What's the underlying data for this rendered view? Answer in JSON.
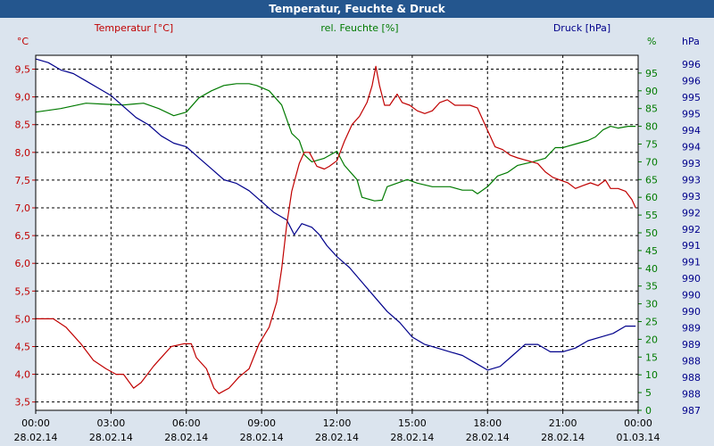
{
  "title": "Temperatur, Feuchte & Druck",
  "chart_data": {
    "type": "line",
    "grid": true,
    "x_ticks": [
      {
        "time": "00:00",
        "date": "28.02.14"
      },
      {
        "time": "03:00",
        "date": "28.02.14"
      },
      {
        "time": "06:00",
        "date": "28.02.14"
      },
      {
        "time": "09:00",
        "date": "28.02.14"
      },
      {
        "time": "12:00",
        "date": "28.02.14"
      },
      {
        "time": "15:00",
        "date": "28.02.14"
      },
      {
        "time": "18:00",
        "date": "28.02.14"
      },
      {
        "time": "21:00",
        "date": "28.02.14"
      },
      {
        "time": "00:00",
        "date": "01.03.14"
      }
    ],
    "x_range_hours": [
      0,
      24
    ],
    "axes": {
      "temperature": {
        "label": "Temperatur [°C]",
        "unit": "°C",
        "color": "#c00000",
        "side": "left",
        "range": [
          3.35,
          9.75
        ],
        "ticks": [
          "3,5",
          "4,0",
          "4,5",
          "5,0",
          "5,5",
          "6,0",
          "6,5",
          "7,0",
          "7,5",
          "8,0",
          "8,5",
          "9,0",
          "9,5"
        ],
        "tick_values": [
          3.5,
          4.0,
          4.5,
          5.0,
          5.5,
          6.0,
          6.5,
          7.0,
          7.5,
          8.0,
          8.5,
          9.0,
          9.5
        ]
      },
      "humidity": {
        "label": "rel. Feuchte [%]",
        "unit": "%",
        "color": "#007a00",
        "side": "right-inner",
        "range": [
          0,
          100
        ],
        "ticks": [
          "0",
          "5",
          "10",
          "15",
          "20",
          "25",
          "30",
          "35",
          "40",
          "45",
          "50",
          "55",
          "60",
          "65",
          "70",
          "75",
          "80",
          "85",
          "90",
          "95"
        ],
        "tick_values": [
          0,
          5,
          10,
          15,
          20,
          25,
          30,
          35,
          40,
          45,
          50,
          55,
          60,
          65,
          70,
          75,
          80,
          85,
          90,
          95
        ]
      },
      "pressure": {
        "label": "Druck [hPa]",
        "unit": "hPa",
        "color": "#00008b",
        "side": "right-outer",
        "range": [
          987.0,
          996.7
        ],
        "ticks": [
          "987",
          "988",
          "988",
          "988",
          "989",
          "989",
          "990",
          "990",
          "990",
          "991",
          "991",
          "992",
          "992",
          "993",
          "993",
          "993",
          "994",
          "994",
          "995",
          "995",
          "996",
          "996"
        ]
      }
    },
    "series": [
      {
        "name": "Temperatur [°C]",
        "axis": "temperature",
        "color": "#c00000",
        "points": [
          [
            0,
            5.0
          ],
          [
            0.7,
            5.0
          ],
          [
            1.2,
            4.85
          ],
          [
            1.8,
            4.55
          ],
          [
            2.3,
            4.25
          ],
          [
            2.8,
            4.1
          ],
          [
            3.2,
            4.0
          ],
          [
            3.5,
            4.0
          ],
          [
            3.9,
            3.75
          ],
          [
            4.2,
            3.85
          ],
          [
            4.7,
            4.15
          ],
          [
            5.1,
            4.35
          ],
          [
            5.4,
            4.5
          ],
          [
            5.9,
            4.55
          ],
          [
            6.2,
            4.55
          ],
          [
            6.4,
            4.3
          ],
          [
            6.8,
            4.1
          ],
          [
            7.1,
            3.75
          ],
          [
            7.3,
            3.65
          ],
          [
            7.7,
            3.75
          ],
          [
            8.1,
            3.95
          ],
          [
            8.5,
            4.1
          ],
          [
            8.9,
            4.55
          ],
          [
            9.3,
            4.85
          ],
          [
            9.6,
            5.3
          ],
          [
            9.8,
            5.9
          ],
          [
            10.0,
            6.7
          ],
          [
            10.2,
            7.3
          ],
          [
            10.5,
            7.8
          ],
          [
            10.7,
            8.0
          ],
          [
            10.9,
            8.0
          ],
          [
            11.2,
            7.75
          ],
          [
            11.5,
            7.7
          ],
          [
            11.7,
            7.75
          ],
          [
            12.0,
            7.85
          ],
          [
            12.3,
            8.2
          ],
          [
            12.6,
            8.5
          ],
          [
            12.9,
            8.65
          ],
          [
            13.2,
            8.9
          ],
          [
            13.4,
            9.2
          ],
          [
            13.55,
            9.55
          ],
          [
            13.7,
            9.2
          ],
          [
            13.9,
            8.85
          ],
          [
            14.1,
            8.85
          ],
          [
            14.4,
            9.05
          ],
          [
            14.6,
            8.9
          ],
          [
            14.9,
            8.85
          ],
          [
            15.2,
            8.75
          ],
          [
            15.5,
            8.7
          ],
          [
            15.8,
            8.75
          ],
          [
            16.1,
            8.9
          ],
          [
            16.4,
            8.95
          ],
          [
            16.7,
            8.85
          ],
          [
            17.0,
            8.85
          ],
          [
            17.3,
            8.85
          ],
          [
            17.6,
            8.8
          ],
          [
            17.9,
            8.5
          ],
          [
            18.1,
            8.3
          ],
          [
            18.3,
            8.1
          ],
          [
            18.6,
            8.05
          ],
          [
            18.9,
            7.95
          ],
          [
            19.2,
            7.9
          ],
          [
            19.6,
            7.85
          ],
          [
            20.0,
            7.8
          ],
          [
            20.3,
            7.65
          ],
          [
            20.6,
            7.55
          ],
          [
            20.9,
            7.5
          ],
          [
            21.2,
            7.45
          ],
          [
            21.5,
            7.35
          ],
          [
            21.8,
            7.4
          ],
          [
            22.1,
            7.45
          ],
          [
            22.4,
            7.4
          ],
          [
            22.7,
            7.5
          ],
          [
            22.9,
            7.35
          ],
          [
            23.2,
            7.35
          ],
          [
            23.5,
            7.3
          ],
          [
            23.75,
            7.15
          ],
          [
            23.9,
            7.0
          ]
        ]
      },
      {
        "name": "rel. Feuchte [%]",
        "axis": "humidity",
        "color": "#007a00",
        "points": [
          [
            0,
            84
          ],
          [
            1,
            85
          ],
          [
            2,
            86.5
          ],
          [
            2.8,
            86.2
          ],
          [
            3.5,
            86
          ],
          [
            3.8,
            86.2
          ],
          [
            4.3,
            86.5
          ],
          [
            4.9,
            85
          ],
          [
            5.5,
            83
          ],
          [
            6.0,
            84
          ],
          [
            6.5,
            88
          ],
          [
            7.0,
            90
          ],
          [
            7.5,
            91.5
          ],
          [
            8.0,
            92
          ],
          [
            8.5,
            92
          ],
          [
            8.8,
            91.5
          ],
          [
            9.3,
            90
          ],
          [
            9.8,
            86
          ],
          [
            10.2,
            78
          ],
          [
            10.5,
            76
          ],
          [
            10.7,
            72
          ],
          [
            11.0,
            70
          ],
          [
            11.5,
            71
          ],
          [
            12.0,
            73
          ],
          [
            12.3,
            69
          ],
          [
            12.8,
            65
          ],
          [
            13.0,
            60
          ],
          [
            13.5,
            59
          ],
          [
            13.8,
            59.2
          ],
          [
            14.0,
            63
          ],
          [
            14.4,
            64
          ],
          [
            14.8,
            65
          ],
          [
            15.2,
            64
          ],
          [
            15.8,
            63
          ],
          [
            16.5,
            63
          ],
          [
            17.0,
            62
          ],
          [
            17.4,
            62
          ],
          [
            17.6,
            61
          ],
          [
            18.0,
            63
          ],
          [
            18.4,
            66
          ],
          [
            18.8,
            67
          ],
          [
            19.2,
            69
          ],
          [
            19.8,
            70
          ],
          [
            20.3,
            71
          ],
          [
            20.7,
            74
          ],
          [
            21.0,
            74
          ],
          [
            21.5,
            75
          ],
          [
            22.0,
            76
          ],
          [
            22.3,
            77
          ],
          [
            22.6,
            79
          ],
          [
            22.9,
            80
          ],
          [
            23.2,
            79.5
          ],
          [
            23.6,
            80
          ],
          [
            23.9,
            80
          ]
        ]
      },
      {
        "name": "Druck [hPa]",
        "axis": "pressure",
        "color": "#00008b",
        "points": [
          [
            0,
            996.6
          ],
          [
            0.5,
            996.5
          ],
          [
            1.0,
            996.3
          ],
          [
            1.5,
            996.2
          ],
          [
            2.0,
            996.0
          ],
          [
            2.5,
            995.8
          ],
          [
            3.0,
            995.6
          ],
          [
            3.5,
            995.3
          ],
          [
            4.0,
            995.0
          ],
          [
            4.5,
            994.8
          ],
          [
            5.0,
            994.5
          ],
          [
            5.5,
            994.3
          ],
          [
            6.0,
            994.2
          ],
          [
            6.5,
            993.9
          ],
          [
            7.0,
            993.6
          ],
          [
            7.5,
            993.3
          ],
          [
            8.0,
            993.2
          ],
          [
            8.5,
            993.0
          ],
          [
            9.0,
            992.7
          ],
          [
            9.5,
            992.4
          ],
          [
            10.0,
            992.2
          ],
          [
            10.3,
            991.8
          ],
          [
            10.6,
            992.1
          ],
          [
            11.0,
            992.0
          ],
          [
            11.3,
            991.8
          ],
          [
            11.6,
            991.5
          ],
          [
            12.0,
            991.2
          ],
          [
            12.5,
            990.9
          ],
          [
            13.0,
            990.5
          ],
          [
            13.5,
            990.1
          ],
          [
            14.0,
            989.7
          ],
          [
            14.5,
            989.4
          ],
          [
            15.0,
            989.0
          ],
          [
            15.5,
            988.8
          ],
          [
            16.0,
            988.7
          ],
          [
            16.5,
            988.6
          ],
          [
            17.0,
            988.5
          ],
          [
            17.5,
            988.3
          ],
          [
            18.0,
            988.1
          ],
          [
            18.5,
            988.2
          ],
          [
            19.0,
            988.5
          ],
          [
            19.5,
            988.8
          ],
          [
            20.0,
            988.8
          ],
          [
            20.5,
            988.6
          ],
          [
            21.0,
            988.6
          ],
          [
            21.5,
            988.7
          ],
          [
            22.0,
            988.9
          ],
          [
            22.5,
            989.0
          ],
          [
            23.0,
            989.1
          ],
          [
            23.5,
            989.3
          ],
          [
            23.9,
            989.3
          ]
        ]
      }
    ]
  }
}
